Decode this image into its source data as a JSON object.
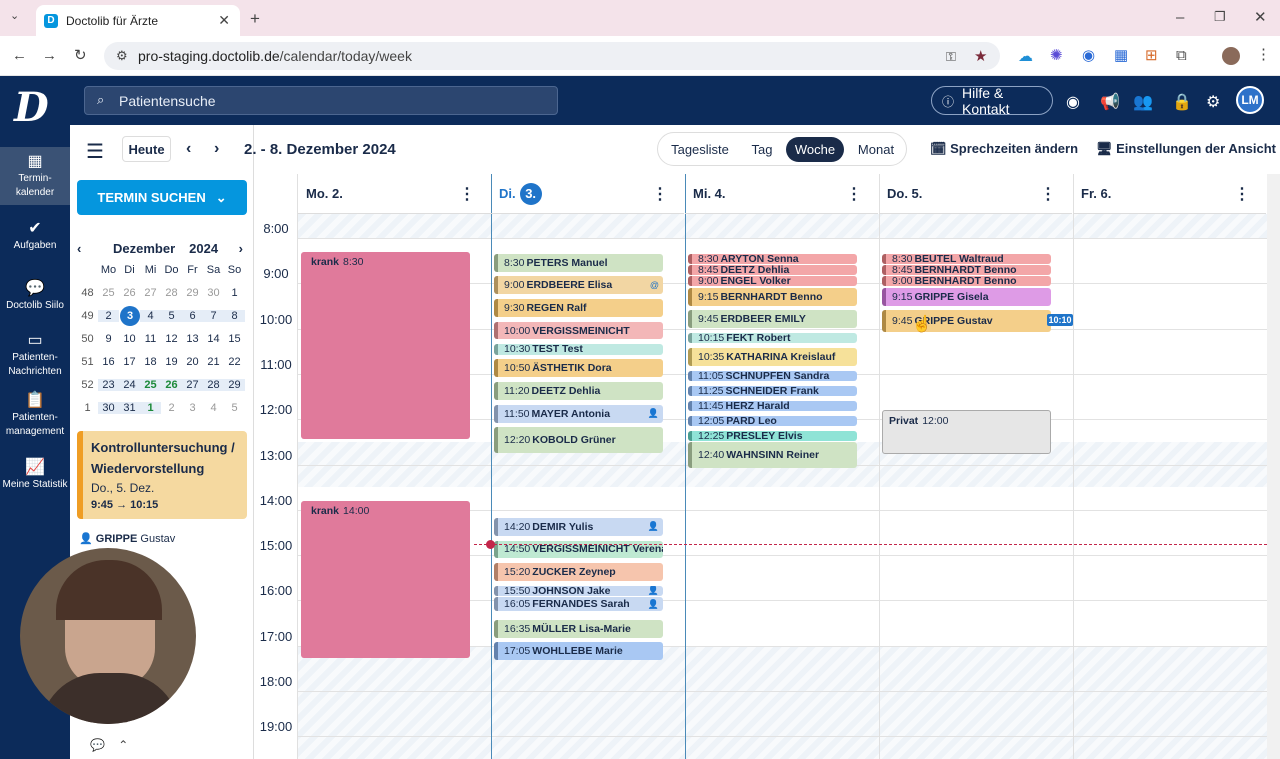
{
  "browser": {
    "tab_title": "Doctolib für Ärzte",
    "url_host": "pro-staging.doctolib.de",
    "url_path": "/calendar/today/week"
  },
  "header": {
    "search_placeholder": "Patientensuche",
    "help_label": "Hilfe & Kontakt",
    "avatar_initials": "LM"
  },
  "nav": {
    "items": [
      {
        "label": "Termin-\nkalender",
        "icon": "calendar-icon"
      },
      {
        "label": "Aufgaben",
        "icon": "check-icon"
      },
      {
        "label": "Doctolib Siilo",
        "icon": "chat-icon"
      },
      {
        "label": "Patienten-\nNachrichten",
        "icon": "message-icon"
      },
      {
        "label": "Patienten-\nmanagement",
        "icon": "clipboard-icon"
      },
      {
        "label": "Meine Statistik",
        "icon": "chart-icon"
      }
    ]
  },
  "toolbar": {
    "today": "Heute",
    "range": "2. - 8. Dezember 2024",
    "views": [
      "Tagesliste",
      "Tag",
      "Woche",
      "Monat"
    ],
    "active_view": "Woche",
    "change_hours": "Sprechzeiten ändern",
    "view_settings": "Einstellungen der Ansicht"
  },
  "sidebar": {
    "find_button": "TERMIN SUCHEN",
    "month": "Dezember",
    "year": "2024",
    "weekday_headers": [
      "Mo",
      "Di",
      "Mi",
      "Do",
      "Fr",
      "Sa",
      "So"
    ],
    "weeks": [
      {
        "wk": "48",
        "days": [
          "25",
          "26",
          "27",
          "28",
          "29",
          "30",
          "1"
        ]
      },
      {
        "wk": "49",
        "days": [
          "2",
          "3",
          "4",
          "5",
          "6",
          "7",
          "8"
        ]
      },
      {
        "wk": "50",
        "days": [
          "9",
          "10",
          "11",
          "12",
          "13",
          "14",
          "15"
        ]
      },
      {
        "wk": "51",
        "days": [
          "16",
          "17",
          "18",
          "19",
          "20",
          "21",
          "22"
        ]
      },
      {
        "wk": "52",
        "days": [
          "23",
          "24",
          "25",
          "26",
          "27",
          "28",
          "29"
        ]
      },
      {
        "wk": "1",
        "days": [
          "30",
          "31",
          "1",
          "2",
          "3",
          "4",
          "5"
        ]
      }
    ],
    "appt_title": "Kontrolluntersuchung / Wiedervorstellung",
    "appt_date": "Do., 5. Dez.",
    "appt_time": "9:45 → 10:15",
    "patient_last": "GRIPPE",
    "patient_first": "Gustav"
  },
  "days": [
    {
      "label": "Mo. 2."
    },
    {
      "label": "Di.",
      "badge": "3."
    },
    {
      "label": "Mi. 4."
    },
    {
      "label": "Do. 5."
    },
    {
      "label": "Fr. 6."
    }
  ],
  "hours": [
    "8:00",
    "9:00",
    "10:00",
    "11:00",
    "12:00",
    "13:00",
    "14:00",
    "15:00",
    "16:00",
    "17:00",
    "18:00",
    "19:00"
  ],
  "now_chip": "10:10",
  "events": [
    {
      "day": 0,
      "start": "8:30",
      "end": "12:40",
      "label": "krank",
      "time": "8:30",
      "color": "#e07a9b"
    },
    {
      "day": 0,
      "start": "14:00",
      "end": "17:30",
      "label": "krank",
      "time": "14:00",
      "color": "#e07a9b"
    },
    {
      "day": 1,
      "start": "8:30",
      "end": "8:55",
      "time": "8:30",
      "name": "PETERS Manuel",
      "color": "#cfe3c4"
    },
    {
      "day": 1,
      "start": "9:00",
      "end": "9:25",
      "time": "9:00",
      "name": "ERDBEERE Elisa",
      "color": "#f2d6a3",
      "icon": "@"
    },
    {
      "day": 1,
      "start": "9:30",
      "end": "9:55",
      "time": "9:30",
      "name": "REGEN Ralf",
      "color": "#f4cf8a"
    },
    {
      "day": 1,
      "start": "10:00",
      "end": "10:25",
      "time": "10:00",
      "name": "VERGISSMEINICHT",
      "color": "#f3b7b8"
    },
    {
      "day": 1,
      "start": "10:30",
      "end": "10:45",
      "time": "10:30",
      "name": "TEST Test",
      "color": "#bfe9e2"
    },
    {
      "day": 1,
      "start": "10:50",
      "end": "11:15",
      "time": "10:50",
      "name": "ÄSTHETIK Dora",
      "color": "#f4cf8a"
    },
    {
      "day": 1,
      "start": "11:20",
      "end": "11:45",
      "time": "11:20",
      "name": "DEETZ Dehlia",
      "color": "#cfe3c4"
    },
    {
      "day": 1,
      "start": "11:50",
      "end": "12:15",
      "time": "11:50",
      "name": "MAYER Antonia",
      "color": "#c8d9f2",
      "icon": "person"
    },
    {
      "day": 1,
      "start": "12:20",
      "end": "12:55",
      "time": "12:20",
      "name": "KOBOLD Grüner",
      "color": "#cfe3c4"
    },
    {
      "day": 1,
      "start": "14:20",
      "end": "14:45",
      "time": "14:20",
      "name": "DEMIR Yulis",
      "color": "#c8d9f2",
      "icon": "person"
    },
    {
      "day": 1,
      "start": "14:50",
      "end": "15:15",
      "time": "14:50",
      "name": "VERGISSMEINICHT Verena",
      "color": "#bfe9d2"
    },
    {
      "day": 1,
      "start": "15:20",
      "end": "15:45",
      "time": "15:20",
      "name": "ZUCKER Zeynep",
      "color": "#f6c5ad"
    },
    {
      "day": 1,
      "start": "15:50",
      "end": "16:00",
      "time": "15:50",
      "name": "JOHNSON Jake",
      "color": "#c8d9f2",
      "icon": "person"
    },
    {
      "day": 1,
      "start": "16:05",
      "end": "16:25",
      "time": "16:05",
      "name": "FERNANDES Sarah",
      "color": "#c8d9f2",
      "icon": "person"
    },
    {
      "day": 1,
      "start": "16:35",
      "end": "17:00",
      "time": "16:35",
      "name": "MÜLLER Lisa-Marie",
      "color": "#cfe3c4"
    },
    {
      "day": 1,
      "start": "17:05",
      "end": "17:30",
      "time": "17:05",
      "name": "WOHLLEBE Marie",
      "color": "#a9c8f3"
    },
    {
      "day": 2,
      "start": "8:30",
      "end": "8:44",
      "time": "8:30",
      "name": "ARYTON Senna",
      "color": "#f3a6a8"
    },
    {
      "day": 2,
      "start": "8:45",
      "end": "8:59",
      "time": "8:45",
      "name": "DEETZ Dehlia",
      "color": "#f3a6a8"
    },
    {
      "day": 2,
      "start": "9:00",
      "end": "9:14",
      "time": "9:00",
      "name": "ENGEL Volker",
      "color": "#f3a6a8"
    },
    {
      "day": 2,
      "start": "9:15",
      "end": "9:40",
      "time": "9:15",
      "name": "BERNHARDT Benno",
      "color": "#f4cf8a"
    },
    {
      "day": 2,
      "start": "9:45",
      "end": "10:10",
      "time": "9:45",
      "name": "ERDBEER EMILY",
      "color": "#cfe3c4"
    },
    {
      "day": 2,
      "start": "10:15",
      "end": "10:30",
      "time": "10:15",
      "name": "FEKT Robert",
      "color": "#bfe9e2"
    },
    {
      "day": 2,
      "start": "10:35",
      "end": "11:00",
      "time": "10:35",
      "name": "KATHARINA Kreislauf",
      "color": "#f6e19a"
    },
    {
      "day": 2,
      "start": "11:05",
      "end": "11:20",
      "time": "11:05",
      "name": "SCHNUPFEN Sandra",
      "color": "#a9c8f3"
    },
    {
      "day": 2,
      "start": "11:25",
      "end": "11:40",
      "time": "11:25",
      "name": "SCHNEIDER Frank",
      "color": "#a9c8f3"
    },
    {
      "day": 2,
      "start": "11:45",
      "end": "12:00",
      "time": "11:45",
      "name": "HERZ Harald",
      "color": "#a9c8f3"
    },
    {
      "day": 2,
      "start": "12:05",
      "end": "12:20",
      "time": "12:05",
      "name": "PARD Leo",
      "color": "#a9c8f3"
    },
    {
      "day": 2,
      "start": "12:25",
      "end": "12:35",
      "time": "12:25",
      "name": "PRESLEY Elvis",
      "color": "#8fe3d6"
    },
    {
      "day": 2,
      "start": "12:40",
      "end": "13:15",
      "time": "12:40",
      "name": "WAHNSINN Reiner",
      "color": "#cfe3c4"
    },
    {
      "day": 3,
      "start": "8:30",
      "end": "8:44",
      "time": "8:30",
      "name": "BEUTEL Waltraud",
      "color": "#f3a6a8"
    },
    {
      "day": 3,
      "start": "8:45",
      "end": "8:59",
      "time": "8:45",
      "name": "BERNHARDT Benno",
      "color": "#f3a6a8"
    },
    {
      "day": 3,
      "start": "9:00",
      "end": "9:14",
      "time": "9:00",
      "name": "BERNHARDT Benno",
      "color": "#f3a6a8"
    },
    {
      "day": 3,
      "start": "9:15",
      "end": "9:40",
      "time": "9:15",
      "name": "GRIPPE Gisela",
      "color": "#de9be6"
    },
    {
      "day": 3,
      "start": "9:45",
      "end": "10:15",
      "time": "9:45",
      "name": "GRIPPE Gustav",
      "color": "#f4cf8a"
    },
    {
      "day": 3,
      "start": "12:00",
      "end": "13:00",
      "label": "Privat",
      "time": "12:00",
      "color": "#e6e6e6"
    }
  ]
}
